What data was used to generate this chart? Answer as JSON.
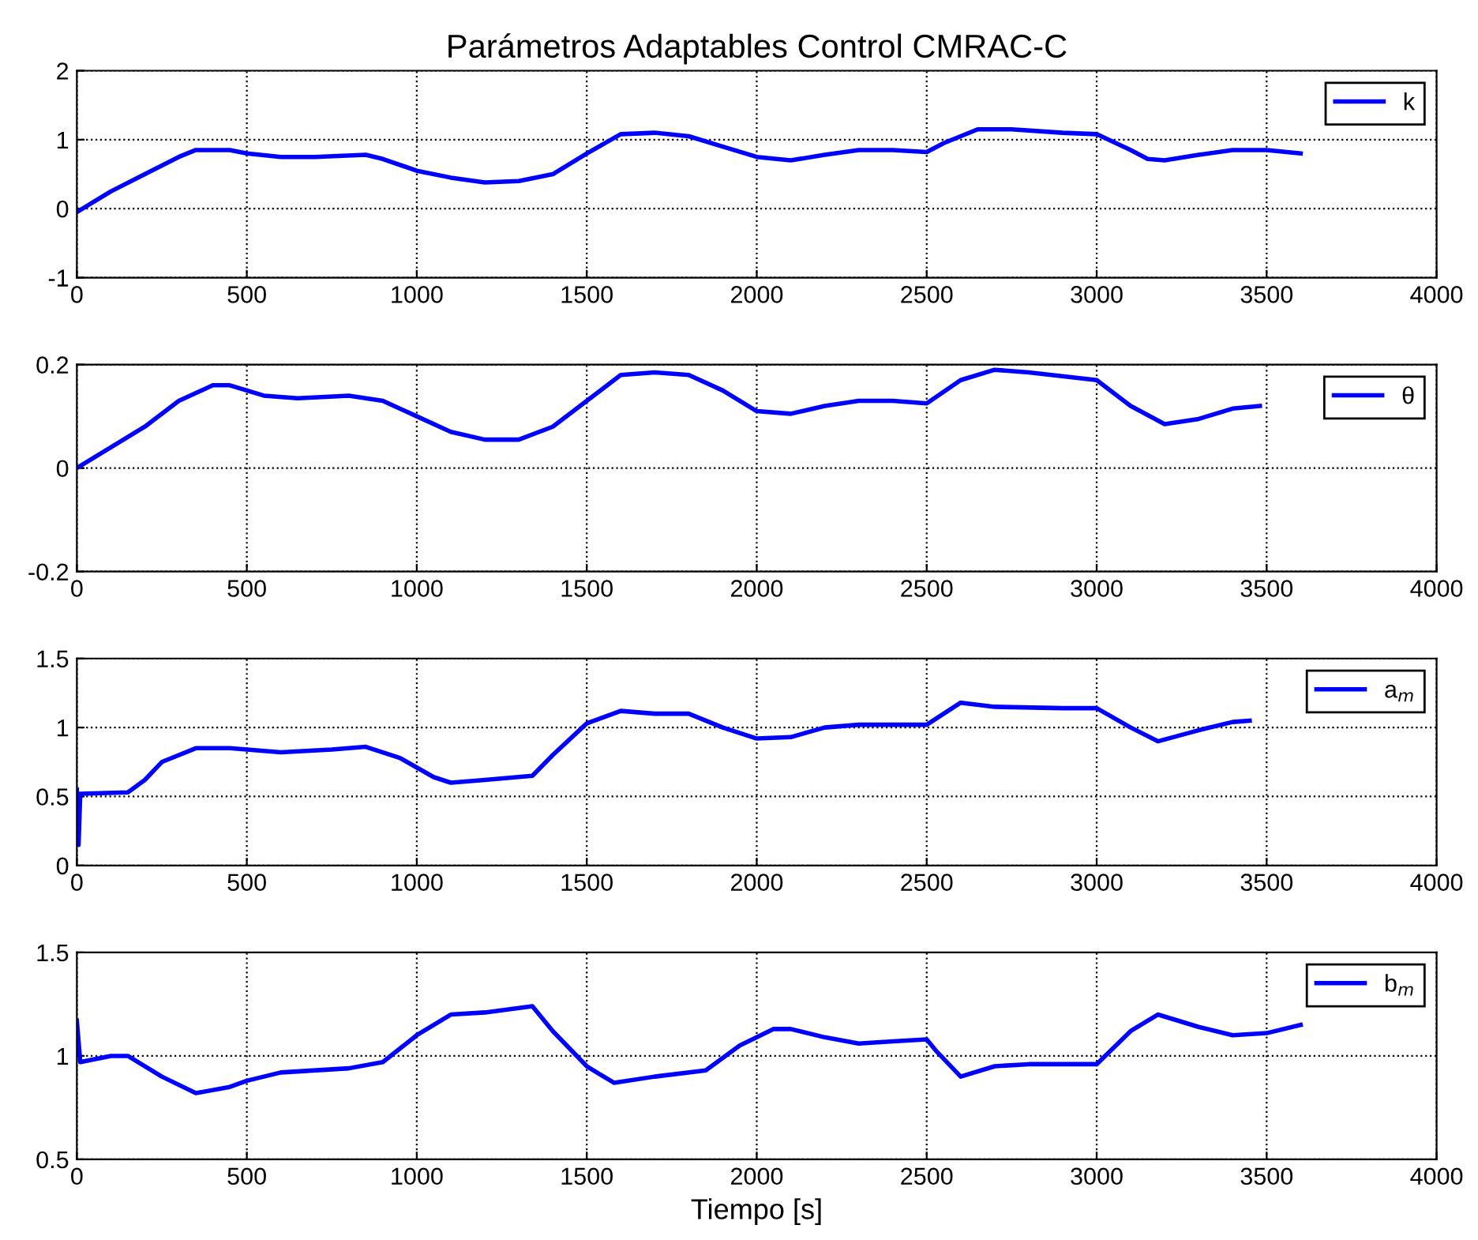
{
  "chart_data": [
    {
      "type": "line",
      "title": "Parámetros Adaptables Control CMRAC-C",
      "xlim": [
        0,
        4000
      ],
      "xticks": [
        0,
        500,
        1000,
        1500,
        2000,
        2500,
        3000,
        3500,
        4000
      ],
      "ylim": [
        -1,
        2
      ],
      "yticks": [
        -1,
        0,
        1,
        2
      ],
      "grid": true,
      "legend": "top right",
      "x": [
        0,
        50,
        100,
        200,
        300,
        350,
        450,
        500,
        600,
        700,
        850,
        900,
        1000,
        1100,
        1200,
        1300,
        1400,
        1500,
        1600,
        1700,
        1800,
        1900,
        2000,
        2100,
        2200,
        2300,
        2400,
        2500,
        2550,
        2650,
        2750,
        2900,
        3000,
        3100,
        3150,
        3200,
        3300,
        3400,
        3500,
        3600
      ],
      "series": [
        {
          "name": "k",
          "color": "#0000ff",
          "values": [
            -0.05,
            0.1,
            0.25,
            0.5,
            0.75,
            0.85,
            0.85,
            0.8,
            0.75,
            0.75,
            0.78,
            0.72,
            0.55,
            0.45,
            0.38,
            0.4,
            0.5,
            0.8,
            1.08,
            1.1,
            1.05,
            0.9,
            0.75,
            0.7,
            0.78,
            0.85,
            0.85,
            0.82,
            0.95,
            1.15,
            1.15,
            1.1,
            1.08,
            0.85,
            0.72,
            0.7,
            0.78,
            0.85,
            0.85,
            0.8
          ]
        }
      ]
    },
    {
      "type": "line",
      "xlim": [
        0,
        4000
      ],
      "xticks": [
        0,
        500,
        1000,
        1500,
        2000,
        2500,
        3000,
        3500,
        4000
      ],
      "ylim": [
        -0.2,
        0.2
      ],
      "yticks": [
        -0.2,
        0,
        0.2
      ],
      "grid": true,
      "legend": "top right",
      "x": [
        0,
        100,
        200,
        300,
        400,
        450,
        550,
        650,
        800,
        900,
        1000,
        1100,
        1200,
        1300,
        1400,
        1500,
        1600,
        1700,
        1800,
        1900,
        2000,
        2100,
        2200,
        2300,
        2400,
        2500,
        2600,
        2700,
        2800,
        3000,
        3100,
        3200,
        3300,
        3400,
        3480
      ],
      "series": [
        {
          "name": "θ",
          "color": "#0000ff",
          "values": [
            0,
            0.04,
            0.08,
            0.13,
            0.16,
            0.16,
            0.14,
            0.135,
            0.14,
            0.13,
            0.1,
            0.07,
            0.055,
            0.055,
            0.08,
            0.13,
            0.18,
            0.185,
            0.18,
            0.15,
            0.11,
            0.105,
            0.12,
            0.13,
            0.13,
            0.125,
            0.17,
            0.19,
            0.185,
            0.17,
            0.12,
            0.085,
            0.095,
            0.115,
            0.12
          ]
        }
      ]
    },
    {
      "type": "line",
      "xlim": [
        0,
        4000
      ],
      "xticks": [
        0,
        500,
        1000,
        1500,
        2000,
        2500,
        3000,
        3500,
        4000
      ],
      "ylim": [
        0,
        1.5
      ],
      "yticks": [
        0,
        0.5,
        1,
        1.5
      ],
      "grid": true,
      "legend": "top right",
      "x": [
        0,
        5,
        10,
        150,
        200,
        250,
        350,
        450,
        600,
        750,
        850,
        950,
        1050,
        1100,
        1200,
        1340,
        1400,
        1500,
        1600,
        1700,
        1800,
        1900,
        2000,
        2100,
        2200,
        2300,
        2500,
        2600,
        2700,
        2900,
        3000,
        3100,
        3180,
        3300,
        3400,
        3450
      ],
      "series": [
        {
          "name": "a$_{m}$",
          "color": "#0000ff",
          "values": [
            0.55,
            0.15,
            0.52,
            0.53,
            0.62,
            0.75,
            0.85,
            0.85,
            0.82,
            0.84,
            0.86,
            0.78,
            0.64,
            0.6,
            0.62,
            0.65,
            0.8,
            1.03,
            1.12,
            1.1,
            1.1,
            1.0,
            0.92,
            0.93,
            1.0,
            1.02,
            1.02,
            1.18,
            1.15,
            1.14,
            1.14,
            1.0,
            0.9,
            0.98,
            1.04,
            1.05
          ]
        }
      ]
    },
    {
      "type": "line",
      "xlabel": "Tiempo [s]",
      "xlim": [
        0,
        4000
      ],
      "xticks": [
        0,
        500,
        1000,
        1500,
        2000,
        2500,
        3000,
        3500,
        4000
      ],
      "ylim": [
        0.5,
        1.5
      ],
      "yticks": [
        0.5,
        1,
        1.5
      ],
      "grid": true,
      "legend": "top right",
      "x": [
        0,
        10,
        100,
        150,
        250,
        350,
        450,
        500,
        600,
        800,
        900,
        1000,
        1100,
        1200,
        1340,
        1400,
        1500,
        1580,
        1700,
        1850,
        1950,
        2050,
        2100,
        2200,
        2300,
        2400,
        2500,
        2530,
        2600,
        2700,
        2800,
        3000,
        3100,
        3180,
        3300,
        3400,
        3500,
        3600
      ],
      "series": [
        {
          "name": "b$_{m}$",
          "color": "#0000ff",
          "values": [
            1.17,
            0.97,
            1.0,
            1.0,
            0.9,
            0.82,
            0.85,
            0.88,
            0.92,
            0.94,
            0.97,
            1.1,
            1.2,
            1.21,
            1.24,
            1.12,
            0.95,
            0.87,
            0.9,
            0.93,
            1.05,
            1.13,
            1.13,
            1.09,
            1.06,
            1.07,
            1.08,
            1.02,
            0.9,
            0.95,
            0.96,
            0.96,
            1.12,
            1.2,
            1.14,
            1.1,
            1.11,
            1.15
          ]
        }
      ]
    }
  ]
}
